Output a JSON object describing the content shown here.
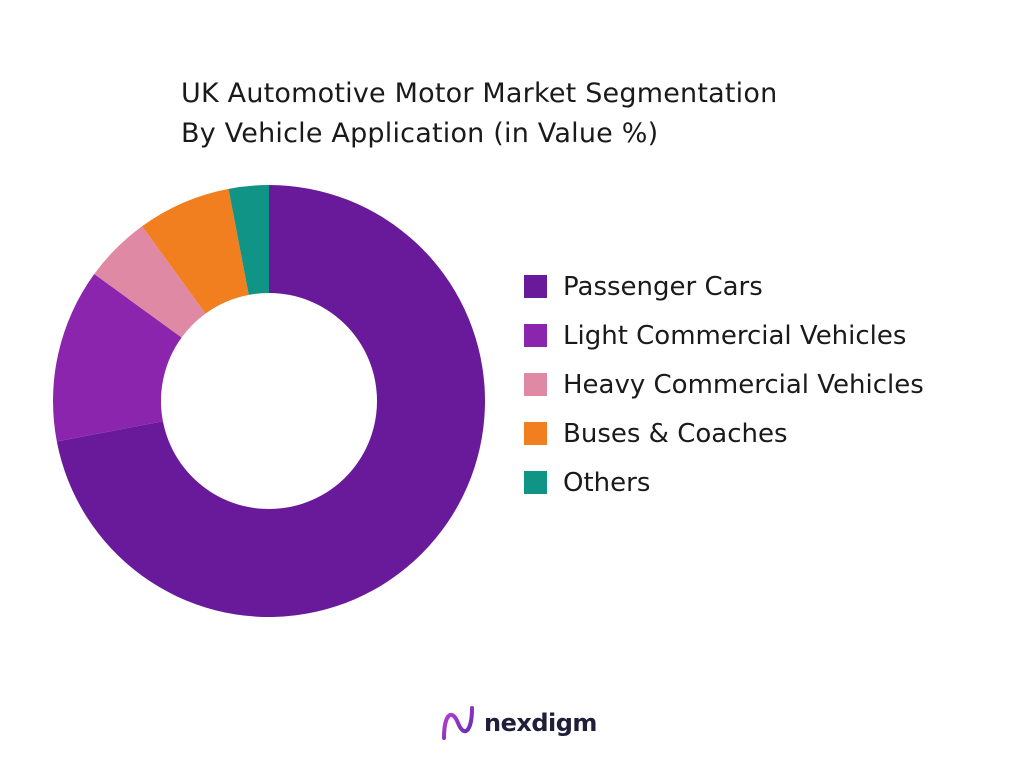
{
  "chart_data": {
    "type": "pie",
    "title": "UK Automotive Motor Market Segmentation",
    "subtitle": "By Vehicle Application (in Value %)",
    "categories": [
      "Passenger Cars",
      "Light Commercial Vehicles",
      "Heavy Commercial Vehicles",
      "Buses & Coaches",
      "Others"
    ],
    "values": [
      72,
      13,
      5,
      7,
      3
    ],
    "colors": [
      "#681a9a",
      "#8c25ad",
      "#e089a4",
      "#f27f1f",
      "#0f9485"
    ],
    "donut": true,
    "legend_position": "right"
  },
  "brand": {
    "name": "nexdigm"
  }
}
